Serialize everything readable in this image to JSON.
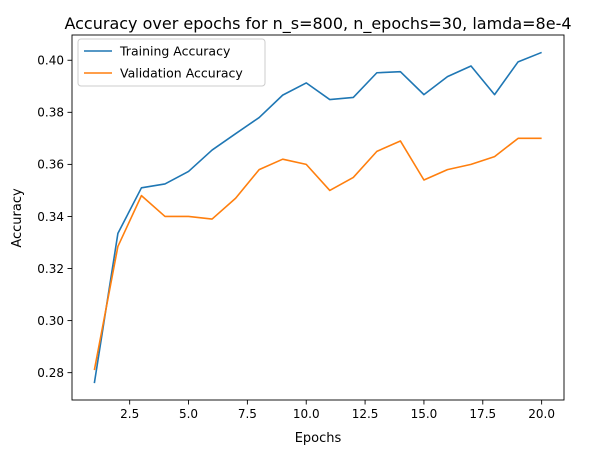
{
  "chart_data": {
    "type": "line",
    "title": "Accuracy over epochs for n_s=800, n_epochs=30, lamda=8e-4",
    "xlabel": "Epochs",
    "ylabel": "Accuracy",
    "xlim": [
      0.05,
      20.95
    ],
    "ylim": [
      0.2695,
      0.4097
    ],
    "xticks": [
      2.5,
      5.0,
      7.5,
      10.0,
      12.5,
      15.0,
      17.5,
      20.0
    ],
    "xtick_labels": [
      "2.5",
      "5.0",
      "7.5",
      "10.0",
      "12.5",
      "15.0",
      "17.5",
      "20.0"
    ],
    "yticks": [
      0.28,
      0.3,
      0.32,
      0.34,
      0.36,
      0.38,
      0.4
    ],
    "ytick_labels": [
      "0.28",
      "0.30",
      "0.32",
      "0.34",
      "0.36",
      "0.38",
      "0.40"
    ],
    "grid": false,
    "legend_position": "top-left",
    "x": [
      1,
      2,
      3,
      4,
      5,
      6,
      7,
      8,
      9,
      10,
      11,
      12,
      13,
      14,
      15,
      16,
      17,
      18,
      19,
      20
    ],
    "series": [
      {
        "name": "Training Accuracy",
        "color": "#1f77b4",
        "values": [
          0.276,
          0.3335,
          0.351,
          0.3525,
          0.3573,
          0.3655,
          0.3718,
          0.378,
          0.3866,
          0.3913,
          0.3849,
          0.3857,
          0.3952,
          0.3956,
          0.3868,
          0.3937,
          0.3978,
          0.3868,
          0.3994,
          0.403
        ]
      },
      {
        "name": "Validation Accuracy",
        "color": "#ff7f0e",
        "values": [
          0.281,
          0.3285,
          0.348,
          0.34,
          0.34,
          0.339,
          0.347,
          0.358,
          0.362,
          0.36,
          0.35,
          0.355,
          0.365,
          0.369,
          0.354,
          0.358,
          0.36,
          0.363,
          0.37,
          0.37
        ]
      }
    ]
  }
}
